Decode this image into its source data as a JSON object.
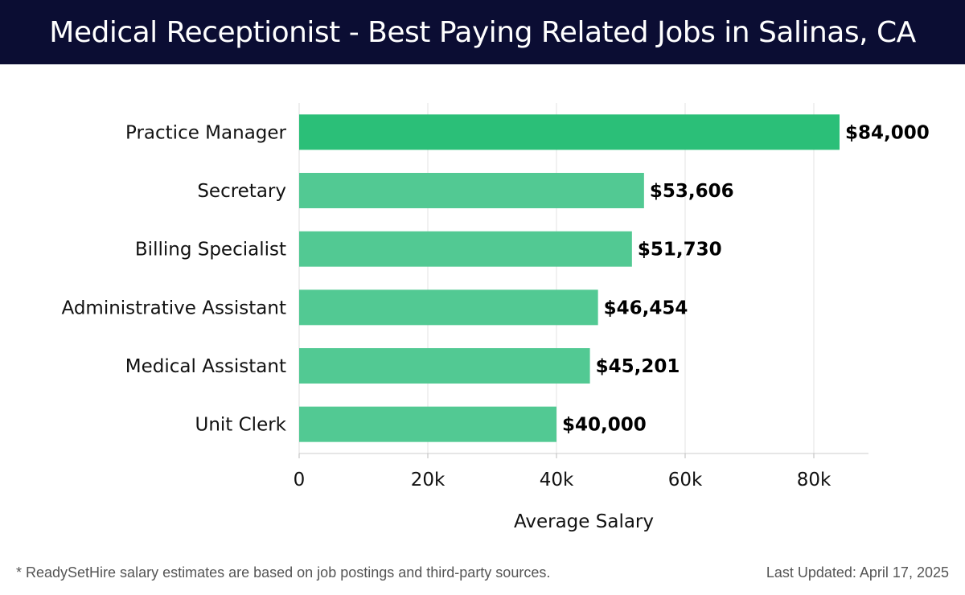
{
  "header": {
    "title": "Medical Receptionist - Best Paying Related Jobs in Salinas, CA"
  },
  "chart_data": {
    "type": "bar",
    "orientation": "horizontal",
    "categories": [
      "Practice Manager",
      "Secretary",
      "Billing Specialist",
      "Administrative Assistant",
      "Medical Assistant",
      "Unit Clerk"
    ],
    "values": [
      84000,
      53606,
      51730,
      46454,
      45201,
      40000
    ],
    "value_labels": [
      "$84,000",
      "$53,606",
      "$51,730",
      "$46,454",
      "$45,201",
      "$40,000"
    ],
    "xlabel": "Average Salary",
    "ylabel": "",
    "xlim": [
      0,
      88500
    ],
    "xticks": [
      0,
      20000,
      40000,
      60000,
      80000
    ],
    "xtick_labels": [
      "0",
      "20k",
      "40k",
      "60k",
      "80k"
    ],
    "grid": "vertical",
    "colors": {
      "highlight": "#2bbf78",
      "bar": "#52c993"
    }
  },
  "footer": {
    "note": "* ReadySetHire salary estimates are based on job postings and third-party sources.",
    "updated": "Last Updated: April 17, 2025"
  }
}
